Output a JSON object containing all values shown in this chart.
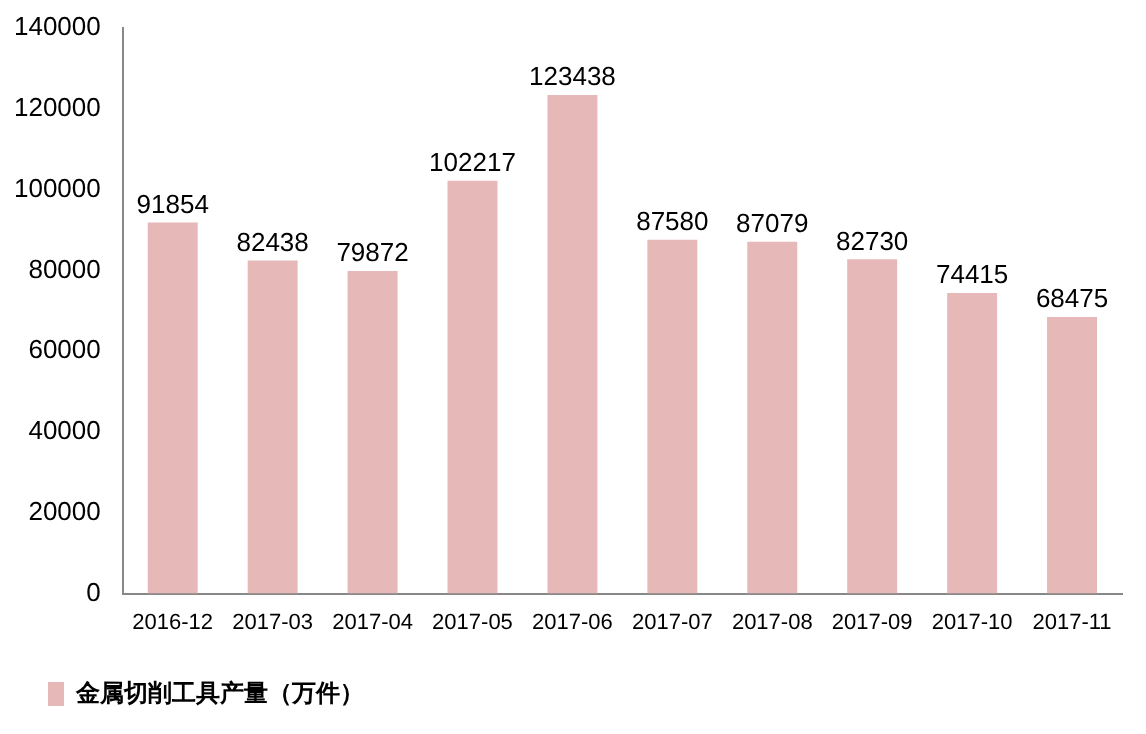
{
  "chart_data": {
    "type": "bar",
    "categories": [
      "2016-12",
      "2017-03",
      "2017-04",
      "2017-05",
      "2017-06",
      "2017-07",
      "2017-08",
      "2017-09",
      "2017-10",
      "2017-11"
    ],
    "series": [
      {
        "name": "金属切削工具产量（万件）",
        "color": "#e6b9b8",
        "values": [
          91854,
          82438,
          79872,
          102217,
          123438,
          87580,
          87079,
          82730,
          74415,
          68475
        ]
      }
    ],
    "ylim": [
      0,
      140000
    ],
    "yticks": [
      0,
      20000,
      40000,
      60000,
      80000,
      100000,
      120000,
      140000
    ],
    "grid": false,
    "legend": "bottom left",
    "data_labels": true
  }
}
